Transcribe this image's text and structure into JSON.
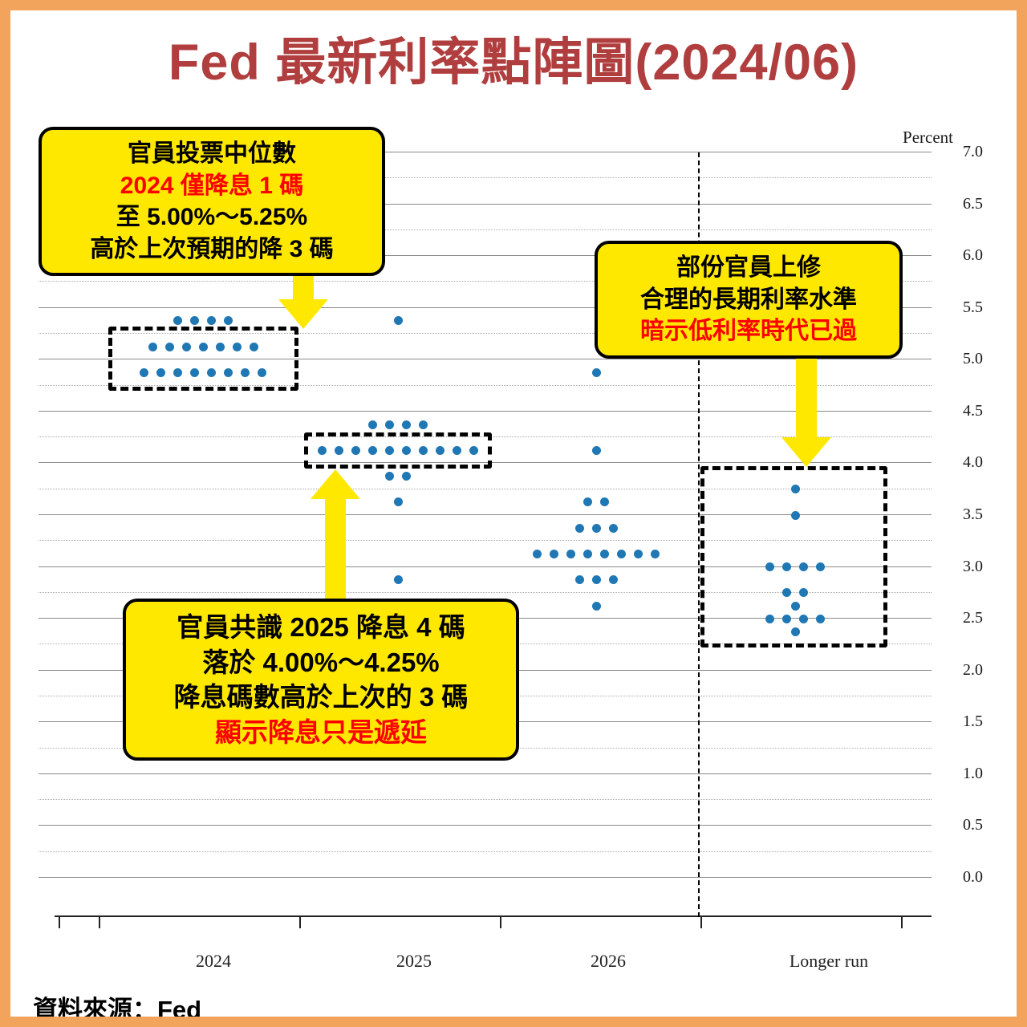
{
  "page": {
    "title": "Fed 最新利率點陣圖(2024/06)",
    "source": "資料來源：Fed"
  },
  "axis": {
    "unit_label": "Percent",
    "x_labels": [
      "2024",
      "2025",
      "2026",
      "Longer run"
    ]
  },
  "callouts": {
    "median_2024": {
      "line1": "官員投票中位數",
      "line2": "2024 僅降息 1 碼",
      "line3": "至 5.00%～5.25%",
      "line4": "高於上次預期的降 3 碼"
    },
    "longer_run": {
      "line1": "部份官員上修",
      "line2": "合理的長期利率水準",
      "line3": "暗示低利率時代已過"
    },
    "consensus_2025": {
      "line1": "官員共識 2025 降息 4 碼",
      "line2": "落於 4.00%～4.25%",
      "line3": "降息碼數高於上次的 3 碼",
      "line4": "顯示降息只是遞延"
    }
  },
  "colors": {
    "frame_orange": "#F2A45C",
    "title_red": "#B03E3E",
    "highlight_red": "#FF0000",
    "callout_yellow": "#FFE800",
    "dot_blue": "#1F77B4"
  },
  "chart_data": {
    "type": "scatter",
    "title": "Fed 最新利率點陣圖(2024/06)",
    "xlabel": "",
    "ylabel": "Percent",
    "ylim": [
      0.0,
      7.0
    ],
    "y_tick_step": 0.5,
    "y_tick_labels": [
      "7.0",
      "6.5",
      "6.0",
      "5.5",
      "5.0",
      "4.5",
      "4.0",
      "3.5",
      "3.0",
      "2.5",
      "2.0",
      "1.5",
      "1.0",
      "0.5",
      "0.0"
    ],
    "grid": "solid line every 0.5 pct, dotted line every 0.25 pct",
    "legend": "none",
    "separator": "vertical dashed line between 2026 and Longer run",
    "categories": [
      "2024",
      "2025",
      "2026",
      "Longer run"
    ],
    "series": [
      {
        "name": "2024",
        "dots": [
          {
            "rate": 5.375,
            "count": 4
          },
          {
            "rate": 5.125,
            "count": 7
          },
          {
            "rate": 4.875,
            "count": 8
          }
        ]
      },
      {
        "name": "2025",
        "dots": [
          {
            "rate": 5.375,
            "count": 1
          },
          {
            "rate": 4.375,
            "count": 4
          },
          {
            "rate": 4.125,
            "count": 10
          },
          {
            "rate": 3.875,
            "count": 2
          },
          {
            "rate": 3.625,
            "count": 1
          },
          {
            "rate": 2.875,
            "count": 1
          }
        ]
      },
      {
        "name": "2026",
        "dots": [
          {
            "rate": 4.875,
            "count": 1
          },
          {
            "rate": 4.125,
            "count": 1
          },
          {
            "rate": 3.625,
            "count": 2
          },
          {
            "rate": 3.375,
            "count": 3
          },
          {
            "rate": 3.125,
            "count": 8
          },
          {
            "rate": 2.875,
            "count": 3
          },
          {
            "rate": 2.625,
            "count": 1
          }
        ]
      },
      {
        "name": "Longer run",
        "dots": [
          {
            "rate": 3.75,
            "count": 1
          },
          {
            "rate": 3.5,
            "count": 1
          },
          {
            "rate": 3.0,
            "count": 4
          },
          {
            "rate": 2.75,
            "count": 2
          },
          {
            "rate": 2.625,
            "count": 1
          },
          {
            "rate": 2.5,
            "count": 4
          },
          {
            "rate": 2.375,
            "count": 1
          }
        ]
      }
    ],
    "highlight_boxes": [
      {
        "target": "2024",
        "rates_covered": [
          5.125,
          4.875
        ]
      },
      {
        "target": "2025",
        "rates_covered": [
          4.125
        ]
      },
      {
        "target": "Longer run",
        "rates_covered": [
          3.75,
          2.5
        ]
      }
    ]
  }
}
